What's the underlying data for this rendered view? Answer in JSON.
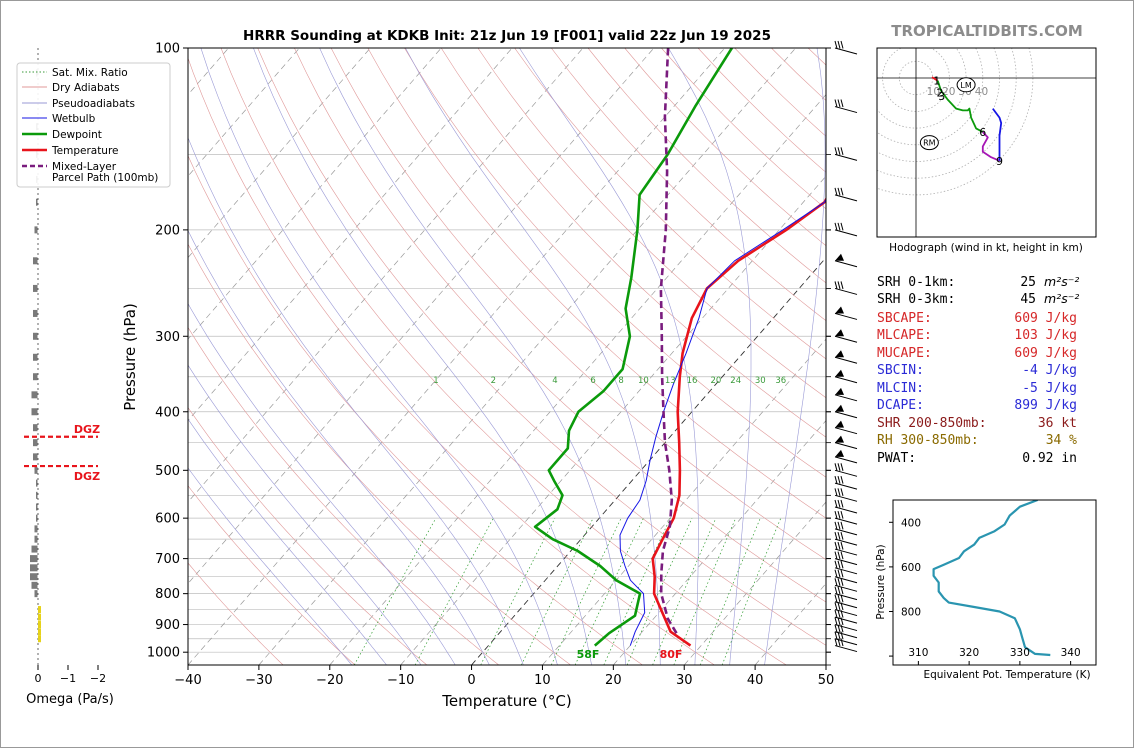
{
  "title": "HRRR Sounding at KDKB Init: 21z Jun 19 [F001] valid 22z Jun 19 2025",
  "brand": "TROPICALTIDBITS.COM",
  "chart_data": [
    {
      "type": "line",
      "name": "skew-t",
      "xlabel": "Temperature (°C)",
      "ylabel": "Pressure (hPa)",
      "xlim": [
        -40,
        50
      ],
      "ylim": [
        1050,
        100
      ],
      "y_scale": "log",
      "x_ticks": [
        -40,
        -30,
        -20,
        -10,
        0,
        10,
        20,
        30,
        40,
        50
      ],
      "x_tick_labels": [
        "−40",
        "−30",
        "−20",
        "−10",
        "0",
        "10",
        "20",
        "30",
        "40",
        "50"
      ],
      "y_ticks": [
        100,
        200,
        300,
        400,
        500,
        600,
        700,
        800,
        900,
        1000
      ],
      "legend": {
        "placement": "top-left",
        "entries": [
          "Sat. Mix. Ratio",
          "Dry Adiabats",
          "Pseudoadiabats",
          "Wetbulb",
          "Dewpoint",
          "Temperature",
          "Mixed-Layer",
          "Parcel Path (100mb)"
        ]
      },
      "mixing_ratio_labels": [
        "1",
        "2",
        "4",
        "6",
        "8",
        "10",
        "13",
        "16",
        "20",
        "24",
        "30",
        "36"
      ],
      "surface_labels": {
        "dewpoint": "58F",
        "temperature": "80F"
      },
      "series": [
        {
          "name": "Temperature",
          "color": "#e8141b",
          "points": [
            [
              28.5,
              975
            ],
            [
              24,
              925
            ],
            [
              17,
              800
            ],
            [
              15,
              750
            ],
            [
              12.5,
              700
            ],
            [
              11.5,
              650
            ],
            [
              10.5,
              600
            ],
            [
              8.5,
              550
            ],
            [
              5.5,
              500
            ],
            [
              2,
              450
            ],
            [
              -2,
              400
            ],
            [
              -6,
              350
            ],
            [
              -8.5,
              320
            ],
            [
              -11.5,
              280
            ],
            [
              -13,
              250
            ],
            [
              -12,
              225
            ],
            [
              -9,
              200
            ],
            [
              -7,
              180
            ],
            [
              -9,
              150
            ],
            [
              -11,
              125
            ],
            [
              -13.5,
              100
            ]
          ]
        },
        {
          "name": "Dewpoint",
          "color": "#0b9a0b",
          "points": [
            [
              15,
              975
            ],
            [
              15.5,
              930
            ],
            [
              17,
              870
            ],
            [
              15,
              800
            ],
            [
              10,
              760
            ],
            [
              6,
              720
            ],
            [
              1,
              680
            ],
            [
              -4,
              650
            ],
            [
              -8,
              620
            ],
            [
              -7,
              580
            ],
            [
              -8,
              550
            ],
            [
              -11,
              520
            ],
            [
              -13,
              500
            ],
            [
              -13,
              460
            ],
            [
              -15,
              430
            ],
            [
              -16,
              400
            ],
            [
              -15,
              370
            ],
            [
              -15,
              340
            ],
            [
              -18,
              300
            ],
            [
              -22,
              270
            ],
            [
              -25,
              240
            ],
            [
              -30,
              200
            ],
            [
              -34,
              175
            ],
            [
              -35,
              150
            ],
            [
              -37,
              125
            ],
            [
              -39,
              100
            ]
          ]
        },
        {
          "name": "Wetbulb",
          "color": "#1515e6",
          "points": [
            [
              20,
              975
            ],
            [
              19,
              925
            ],
            [
              18,
              860
            ],
            [
              15.5,
              800
            ],
            [
              12,
              760
            ],
            [
              9.5,
              720
            ],
            [
              7,
              680
            ],
            [
              5,
              640
            ],
            [
              4,
              600
            ],
            [
              3.5,
              560
            ],
            [
              2,
              520
            ],
            [
              0,
              480
            ],
            [
              -2,
              440
            ],
            [
              -4,
              400
            ],
            [
              -6,
              360
            ],
            [
              -8,
              320
            ],
            [
              -10.5,
              280
            ],
            [
              -13,
              250
            ],
            [
              -12.5,
              225
            ],
            [
              -9.5,
              200
            ],
            [
              -7,
              180
            ],
            [
              -9.5,
              150
            ],
            [
              -11,
              125
            ],
            [
              -13.5,
              100
            ]
          ]
        },
        {
          "name": "Mixed-Layer Parcel Path (100mb)",
          "color": "#7a1c7e",
          "dashed": true,
          "points": [
            [
              25,
              930
            ],
            [
              22,
              880
            ],
            [
              18,
              800
            ],
            [
              15.5,
              740
            ],
            [
              13,
              680
            ],
            [
              11,
              620
            ],
            [
              8,
              560
            ],
            [
              4,
              500
            ],
            [
              0,
              450
            ],
            [
              -4,
              400
            ],
            [
              -8.5,
              350
            ],
            [
              -13.5,
              300
            ],
            [
              -19.5,
              250
            ],
            [
              -26,
              200
            ],
            [
              -33,
              160
            ],
            [
              -40,
              130
            ],
            [
              -48,
              100
            ]
          ]
        }
      ],
      "dgz_markers": [
        {
          "label": "DGZ",
          "pressure": 440
        },
        {
          "label": "DGZ",
          "pressure": 492
        }
      ]
    },
    {
      "type": "bar",
      "name": "omega",
      "xlabel": "Omega (Pa/s)",
      "x_ticks": [
        0,
        -1,
        -2
      ],
      "x_tick_labels": [
        "0",
        "−1",
        "−2"
      ],
      "grey_bars": [
        [
          110,
          0.05
        ],
        [
          135,
          0.05
        ],
        [
          150,
          0.05
        ],
        [
          165,
          0.05
        ],
        [
          180,
          0.05
        ],
        [
          200,
          0.1
        ],
        [
          225,
          0.15
        ],
        [
          250,
          0.15
        ],
        [
          275,
          0.15
        ],
        [
          300,
          0.15
        ],
        [
          325,
          0.15
        ],
        [
          350,
          0.15
        ],
        [
          375,
          0.2
        ],
        [
          400,
          0.2
        ],
        [
          425,
          0.15
        ],
        [
          450,
          0.15
        ],
        [
          475,
          0.15
        ],
        [
          500,
          0.1
        ],
        [
          525,
          0.05
        ],
        [
          550,
          0.05
        ],
        [
          575,
          0.05
        ],
        [
          600,
          0.05
        ],
        [
          625,
          0.1
        ],
        [
          650,
          0.1
        ],
        [
          675,
          0.2
        ],
        [
          700,
          0.25
        ],
        [
          725,
          0.25
        ],
        [
          750,
          0.25
        ],
        [
          775,
          0.2
        ],
        [
          800,
          0.1
        ]
      ],
      "yellow_bars": [
        [
          850,
          -0.05
        ],
        [
          875,
          -0.05
        ],
        [
          900,
          -0.05
        ],
        [
          925,
          -0.05
        ],
        [
          950,
          -0.05
        ]
      ]
    },
    {
      "type": "line",
      "name": "hodograph",
      "caption": "Hodograph (wind in kt, height in km)",
      "ring_labels": [
        "10",
        "20",
        "30",
        "40"
      ],
      "storm_motion_labels": [
        "LM",
        "RM"
      ],
      "height_labels": [
        "1",
        "2",
        "3",
        "6",
        "9"
      ],
      "segments": [
        {
          "color": "#e8141b",
          "points": [
            [
              9.5,
              0.5
            ],
            [
              13,
              -1.5
            ]
          ]
        },
        {
          "color": "#0b9a0b",
          "points": [
            [
              13,
              -1.5
            ],
            [
              15,
              -7
            ],
            [
              19,
              -12
            ],
            [
              24,
              -17
            ],
            [
              28,
              -18
            ],
            [
              31,
              -18
            ],
            [
              32,
              -17
            ],
            [
              33,
              -22
            ],
            [
              36,
              -28
            ],
            [
              40,
              -30
            ]
          ]
        },
        {
          "color": "#a616b5",
          "points": [
            [
              40,
              -30
            ],
            [
              43,
              -33
            ],
            [
              40,
              -38
            ],
            [
              40,
              -41
            ],
            [
              45,
              -44
            ],
            [
              50,
              -46
            ]
          ]
        },
        {
          "color": "#1515e6",
          "points": [
            [
              50,
              -46
            ],
            [
              50,
              -40
            ],
            [
              50,
              -32
            ],
            [
              51,
              -25
            ],
            [
              50,
              -22
            ],
            [
              46,
              -17
            ]
          ]
        }
      ],
      "height_label_points": [
        [
          13,
          -1.5
        ],
        [
          15,
          -8
        ],
        [
          16,
          -10
        ],
        [
          40,
          -30
        ],
        [
          50,
          -46
        ]
      ],
      "storm_motions": [
        [
          30,
          -2
        ],
        [
          8,
          -19
        ]
      ]
    },
    {
      "type": "line",
      "name": "theta-e",
      "xlabel": "Equivalent Pot. Temperature (K)",
      "ylabel": "Pressure (hPa)",
      "xlim": [
        305,
        345
      ],
      "ylim": [
        1050,
        300
      ],
      "x_ticks": [
        310,
        320,
        330,
        340
      ],
      "y_ticks": [
        400,
        600,
        800
      ],
      "color": "#2a95b0",
      "points": [
        [
          333.5,
          300
        ],
        [
          330,
          330
        ],
        [
          328,
          370
        ],
        [
          327,
          410
        ],
        [
          325,
          440
        ],
        [
          322,
          470
        ],
        [
          321,
          500
        ],
        [
          319,
          530
        ],
        [
          318,
          560
        ],
        [
          315,
          590
        ],
        [
          313,
          610
        ],
        [
          313,
          640
        ],
        [
          314,
          670
        ],
        [
          314,
          710
        ],
        [
          315,
          740
        ],
        [
          316,
          760
        ],
        [
          321,
          780
        ],
        [
          326,
          800
        ],
        [
          329,
          830
        ],
        [
          330,
          880
        ],
        [
          330.5,
          920
        ],
        [
          331,
          960
        ],
        [
          333,
          990
        ],
        [
          336,
          995
        ]
      ]
    }
  ],
  "params": {
    "srh_1": {
      "label": "SRH 0-1km:",
      "value": "25",
      "unit": "m²s⁻²",
      "color": "#000000"
    },
    "srh_3": {
      "label": "SRH 0-3km:",
      "value": "45",
      "unit": "m²s⁻²",
      "color": "#000000"
    },
    "sbcape": {
      "label": "SBCAPE:",
      "value": "609 J/kg",
      "color": "#d62728"
    },
    "mlcape": {
      "label": "MLCAPE:",
      "value": "103 J/kg",
      "color": "#d62728"
    },
    "mucape": {
      "label": "MUCAPE:",
      "value": "609 J/kg",
      "color": "#d62728"
    },
    "sbcin": {
      "label": "SBCIN:",
      "value": "-4 J/kg",
      "color": "#2b2bd6"
    },
    "mlcin": {
      "label": "MLCIN:",
      "value": "-5 J/kg",
      "color": "#2b2bd6"
    },
    "dcape": {
      "label": "DCAPE:",
      "value": "899 J/kg",
      "color": "#2b2bd6"
    },
    "shr": {
      "label": "SHR 200-850mb:",
      "value": "36 kt",
      "color": "#8b1a1a"
    },
    "rh": {
      "label": "RH 300-850mb:",
      "value": "34 %",
      "color": "#8a6a00"
    },
    "pwat": {
      "label": "PWAT:",
      "value": "0.92 in",
      "color": "#000000"
    }
  }
}
